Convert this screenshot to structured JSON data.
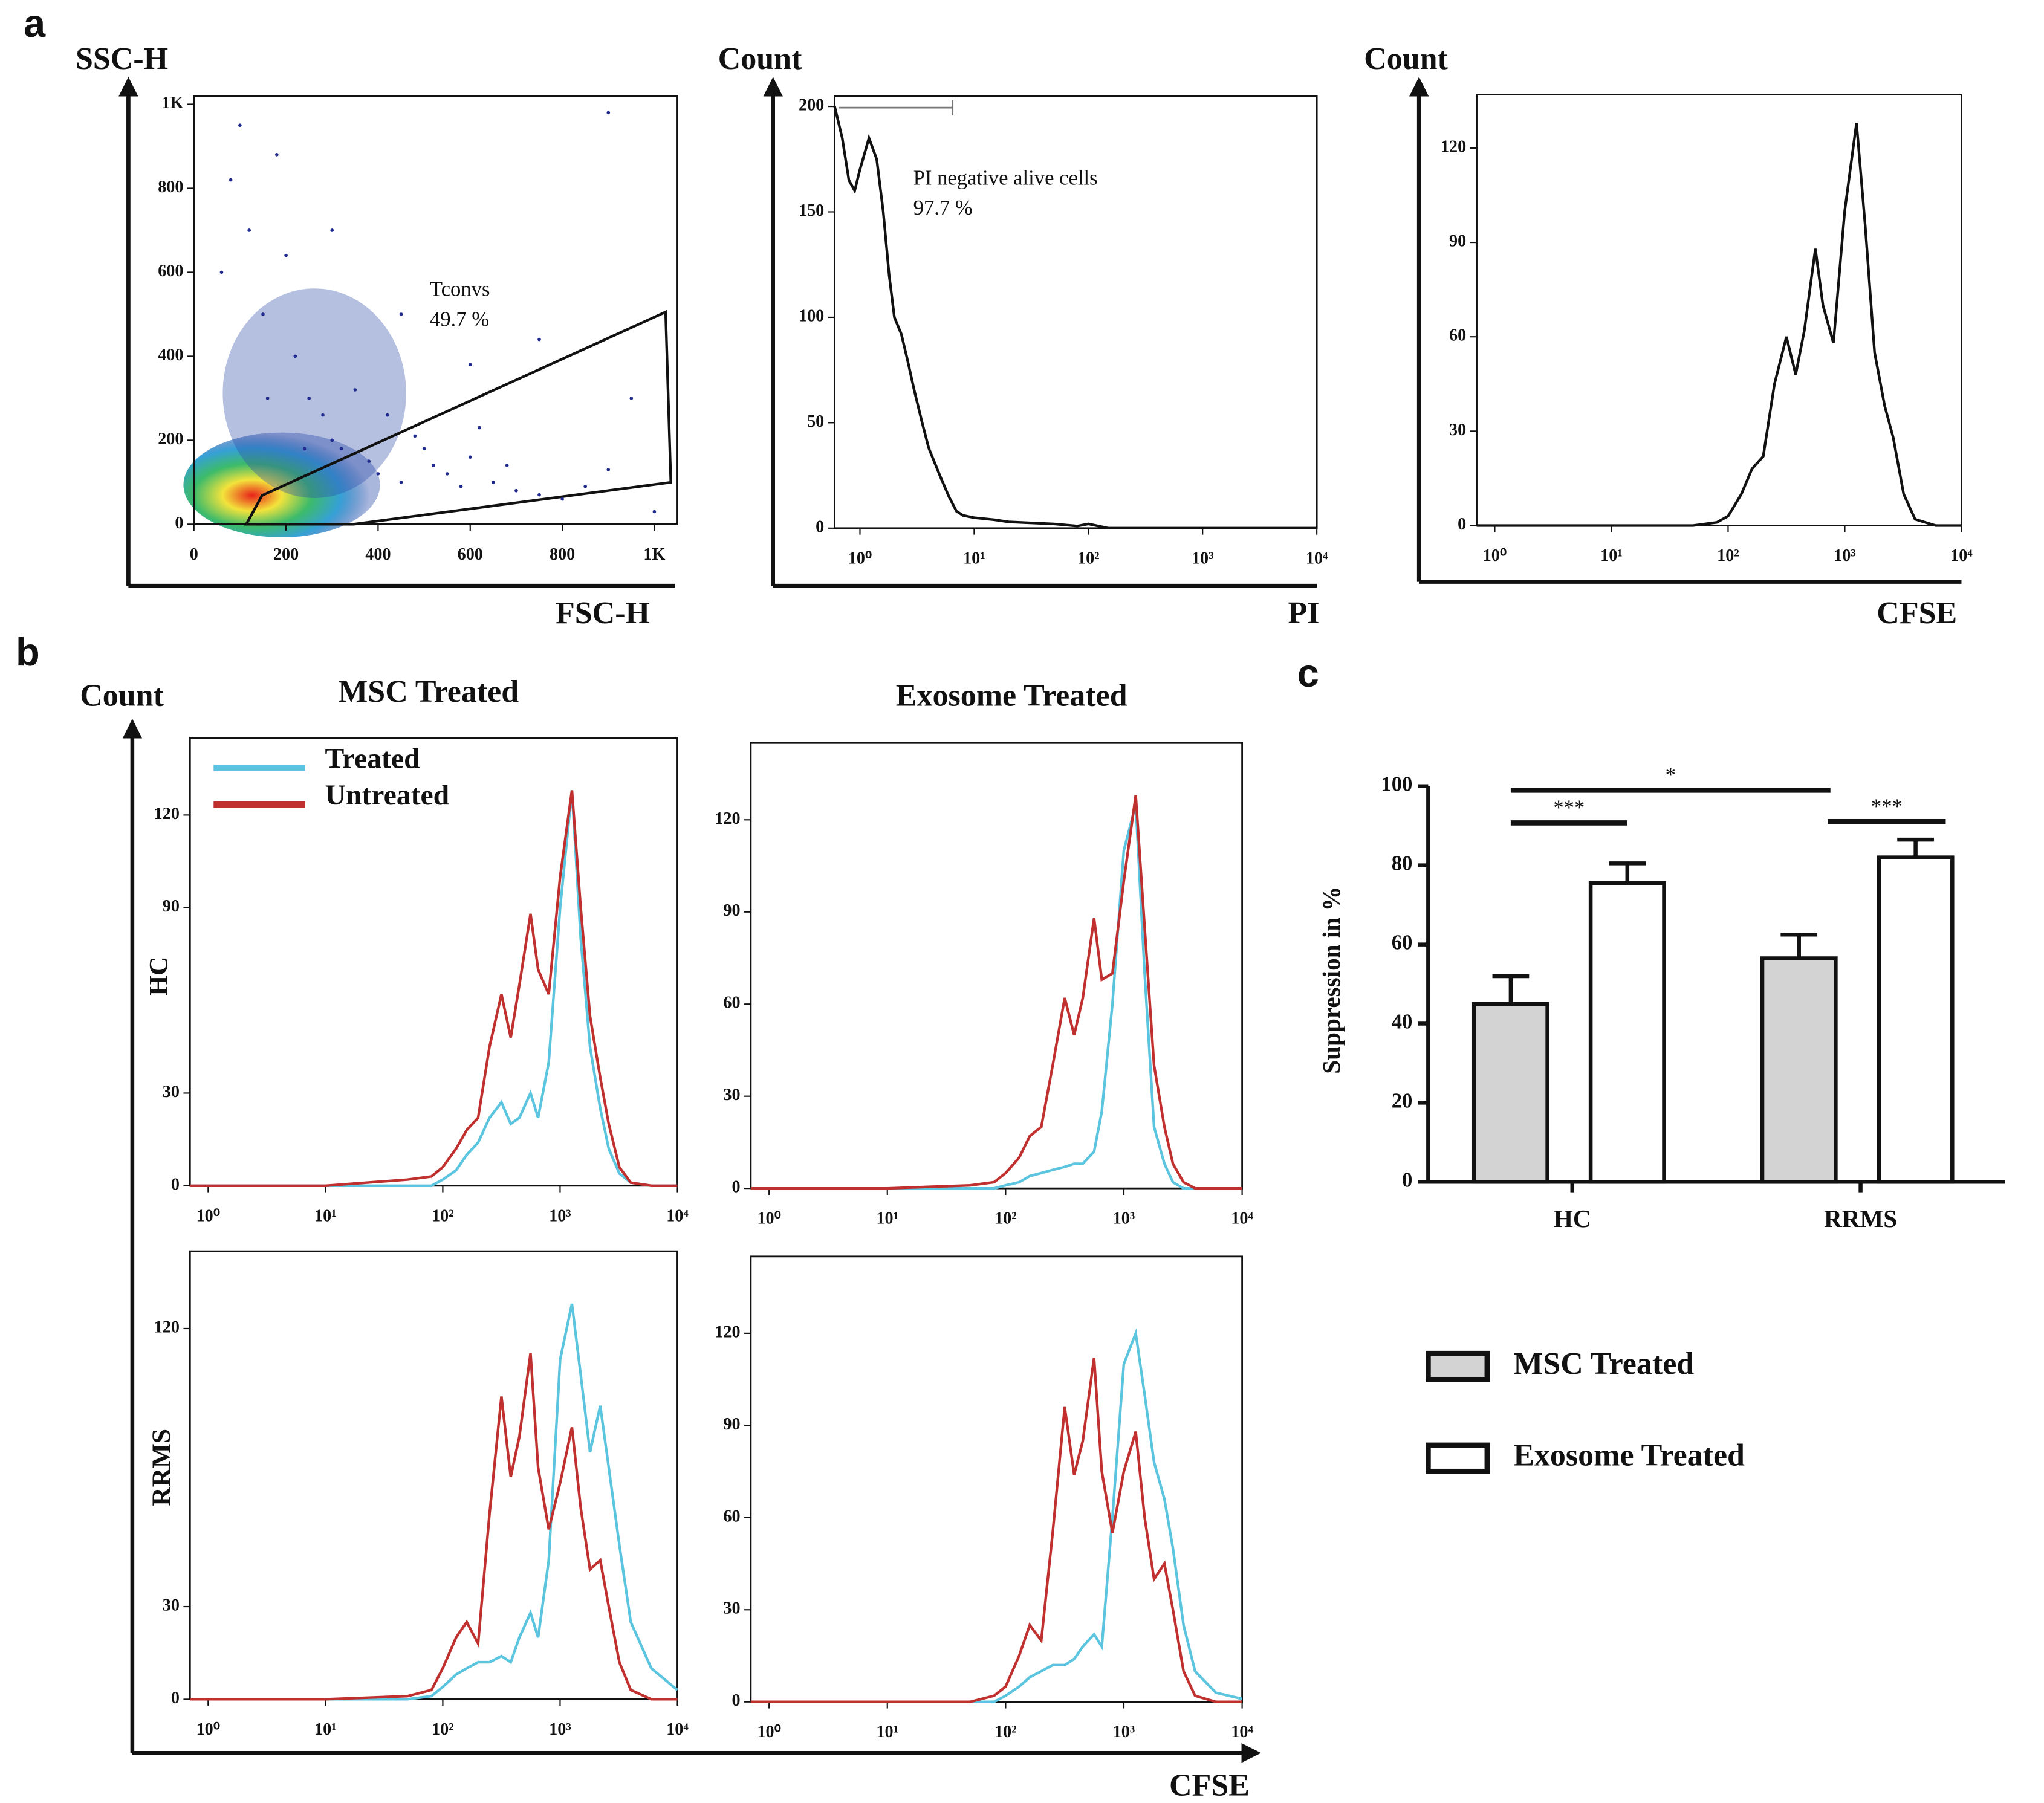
{
  "panel_labels": [
    "a",
    "b",
    "c"
  ],
  "panel_b": {
    "ylabel": "Count",
    "xlabel": "CFSE",
    "columns": [
      "MSC Treated",
      "Exosome Treated"
    ],
    "rows": [
      "HC",
      "RRMS"
    ]
  },
  "chart_data": [
    {
      "type": "scatter",
      "xlabel": "FSC-H",
      "ylabel": "SSC-H",
      "color": "#1f2a8c",
      "gate": {
        "name": "Tconvs",
        "percent": "49.7 %"
      },
      "x": [
        60,
        80,
        100,
        120,
        150,
        180,
        200,
        220,
        250,
        280,
        300,
        320,
        350,
        380,
        400,
        420,
        450,
        480,
        500,
        520,
        550,
        580,
        600,
        620,
        650,
        680,
        700,
        750,
        800,
        850,
        900,
        950,
        1000,
        160,
        240,
        300,
        450,
        600,
        750,
        900
      ],
      "y": [
        600,
        820,
        950,
        700,
        500,
        880,
        640,
        400,
        300,
        260,
        200,
        180,
        320,
        150,
        120,
        260,
        100,
        210,
        180,
        140,
        120,
        90,
        160,
        230,
        100,
        140,
        80,
        70,
        60,
        90,
        130,
        300,
        30,
        300,
        180,
        700,
        500,
        380,
        440,
        980
      ],
      "xlim": [
        0,
        1050
      ],
      "ylim": [
        0,
        1020
      ],
      "xticks": [
        0,
        200,
        400,
        600,
        800,
        {
          "value": 1000,
          "label": "1K"
        }
      ],
      "yticks": [
        0,
        200,
        400,
        600,
        800,
        {
          "value": 1000,
          "label": "1K"
        }
      ]
    },
    {
      "type": "line",
      "xlabel": "PI",
      "ylabel": "Count",
      "xscale": "log",
      "color": "#111111",
      "gate": {
        "name": "PI negative alive cells",
        "percent": "97.7 %"
      },
      "x": [
        0.6,
        0.7,
        0.8,
        0.9,
        1,
        1.2,
        1.4,
        1.6,
        1.8,
        2,
        2.3,
        2.6,
        3,
        3.5,
        4,
        5,
        6,
        7,
        8,
        10,
        15,
        20,
        50,
        80,
        100,
        150,
        1000,
        10000
      ],
      "values": [
        200,
        185,
        165,
        160,
        170,
        185,
        175,
        150,
        120,
        100,
        92,
        80,
        65,
        50,
        38,
        25,
        15,
        8,
        6,
        5,
        4,
        3,
        2,
        1,
        2,
        0,
        0,
        0
      ],
      "xlim": [
        0.6,
        10000
      ],
      "ylim": [
        0,
        205
      ],
      "xticks": [
        {
          "value": 1,
          "label": "10⁰"
        },
        {
          "value": 10,
          "label": "10¹"
        },
        {
          "value": 100,
          "label": "10²"
        },
        {
          "value": 1000,
          "label": "10³"
        },
        {
          "value": 10000,
          "label": "10⁴"
        }
      ],
      "yticks": [
        0,
        50,
        100,
        150,
        200
      ]
    },
    {
      "type": "line",
      "xlabel": "CFSE",
      "ylabel": "Count",
      "xscale": "log",
      "color": "#111111",
      "x": [
        0.7,
        10,
        50,
        80,
        100,
        130,
        160,
        200,
        250,
        316,
        380,
        450,
        560,
        650,
        800,
        1000,
        1260,
        1500,
        1800,
        2200,
        2600,
        3200,
        4000,
        6000,
        10000
      ],
      "values": [
        0,
        0,
        0,
        1,
        3,
        10,
        18,
        22,
        45,
        60,
        48,
        62,
        88,
        70,
        58,
        100,
        128,
        95,
        55,
        38,
        28,
        10,
        2,
        0,
        0
      ],
      "xlim": [
        0.7,
        10000
      ],
      "ylim": [
        0,
        137
      ],
      "xticks": [
        {
          "value": 1,
          "label": "10⁰"
        },
        {
          "value": 10,
          "label": "10¹"
        },
        {
          "value": 100,
          "label": "10²"
        },
        {
          "value": 1000,
          "label": "10³"
        },
        {
          "value": 10000,
          "label": "10⁴"
        }
      ],
      "yticks": [
        0,
        30,
        60,
        90,
        120
      ]
    },
    {
      "type": "line",
      "xscale": "log",
      "legend": "top-left",
      "x": [
        0.7,
        10,
        50,
        80,
        100,
        130,
        160,
        200,
        250,
        316,
        380,
        450,
        560,
        650,
        800,
        1000,
        1260,
        1500,
        1800,
        2200,
        2600,
        3200,
        4000,
        6000,
        10000
      ],
      "series": [
        {
          "name": "Treated",
          "color": "#5bc4de",
          "values": [
            0,
            0,
            0,
            0,
            2,
            5,
            10,
            14,
            22,
            27,
            20,
            22,
            30,
            22,
            40,
            90,
            128,
            80,
            45,
            25,
            12,
            4,
            1,
            0,
            0
          ]
        },
        {
          "name": "Untreated",
          "color": "#c0302f",
          "values": [
            0,
            0,
            2,
            3,
            6,
            12,
            18,
            22,
            45,
            62,
            48,
            65,
            88,
            70,
            62,
            100,
            128,
            90,
            55,
            35,
            20,
            6,
            1,
            0,
            0
          ]
        }
      ],
      "xlim": [
        0.7,
        10000
      ],
      "ylim": [
        0,
        145
      ],
      "xticks": [
        {
          "value": 1,
          "label": "10⁰"
        },
        {
          "value": 10,
          "label": "10¹"
        },
        {
          "value": 100,
          "label": "10²"
        },
        {
          "value": 1000,
          "label": "10³"
        },
        {
          "value": 10000,
          "label": "10⁴"
        }
      ],
      "yticks": [
        0,
        30,
        90,
        120
      ]
    },
    {
      "type": "line",
      "xscale": "log",
      "x": [
        0.7,
        10,
        50,
        80,
        100,
        130,
        160,
        200,
        250,
        316,
        380,
        450,
        560,
        650,
        800,
        1000,
        1260,
        1500,
        1800,
        2200,
        2600,
        3200,
        4000,
        6000,
        10000
      ],
      "series": [
        {
          "name": "Treated",
          "color": "#5bc4de",
          "values": [
            0,
            0,
            0,
            0,
            1,
            2,
            4,
            5,
            6,
            7,
            8,
            8,
            12,
            25,
            60,
            110,
            125,
            70,
            20,
            8,
            2,
            0,
            0,
            0,
            0
          ]
        },
        {
          "name": "Untreated",
          "color": "#c0302f",
          "values": [
            0,
            0,
            1,
            2,
            5,
            10,
            17,
            20,
            40,
            62,
            50,
            62,
            88,
            68,
            70,
            100,
            128,
            85,
            40,
            20,
            8,
            2,
            0,
            0,
            0
          ]
        }
      ],
      "xlim": [
        0.7,
        10000
      ],
      "ylim": [
        0,
        145
      ],
      "xticks": [
        {
          "value": 1,
          "label": "10⁰"
        },
        {
          "value": 10,
          "label": "10¹"
        },
        {
          "value": 100,
          "label": "10²"
        },
        {
          "value": 1000,
          "label": "10³"
        },
        {
          "value": 10000,
          "label": "10⁴"
        }
      ],
      "yticks": [
        0,
        30,
        60,
        90,
        120
      ]
    },
    {
      "type": "line",
      "xscale": "log",
      "x": [
        0.7,
        10,
        50,
        80,
        100,
        130,
        160,
        200,
        250,
        316,
        380,
        450,
        560,
        650,
        800,
        1000,
        1260,
        1500,
        1800,
        2200,
        2600,
        3200,
        4000,
        6000,
        10000
      ],
      "series": [
        {
          "name": "Treated",
          "color": "#5bc4de",
          "values": [
            0,
            0,
            0,
            1,
            4,
            8,
            10,
            12,
            12,
            14,
            12,
            20,
            28,
            20,
            45,
            110,
            128,
            105,
            80,
            95,
            75,
            50,
            25,
            10,
            3
          ]
        },
        {
          "name": "Untreated",
          "color": "#c0302f",
          "values": [
            0,
            0,
            1,
            3,
            10,
            20,
            25,
            18,
            60,
            98,
            72,
            85,
            112,
            75,
            55,
            70,
            88,
            62,
            42,
            45,
            30,
            12,
            3,
            0,
            0
          ]
        }
      ],
      "xlim": [
        0.7,
        10000
      ],
      "ylim": [
        0,
        145
      ],
      "xticks": [
        {
          "value": 1,
          "label": "10⁰"
        },
        {
          "value": 10,
          "label": "10¹"
        },
        {
          "value": 100,
          "label": "10²"
        },
        {
          "value": 1000,
          "label": "10³"
        },
        {
          "value": 10000,
          "label": "10⁴"
        }
      ],
      "yticks": [
        0,
        30,
        120
      ]
    },
    {
      "type": "line",
      "xscale": "log",
      "x": [
        0.7,
        10,
        50,
        80,
        100,
        130,
        160,
        200,
        250,
        316,
        380,
        450,
        560,
        650,
        800,
        1000,
        1260,
        1500,
        1800,
        2200,
        2600,
        3200,
        4000,
        6000,
        10000
      ],
      "series": [
        {
          "name": "Treated",
          "color": "#5bc4de",
          "values": [
            0,
            0,
            0,
            0,
            2,
            5,
            8,
            10,
            12,
            12,
            14,
            18,
            22,
            18,
            60,
            110,
            120,
            100,
            78,
            66,
            50,
            25,
            10,
            3,
            1
          ]
        },
        {
          "name": "Untreated",
          "color": "#c0302f",
          "values": [
            0,
            0,
            0,
            2,
            5,
            15,
            25,
            20,
            55,
            96,
            74,
            85,
            112,
            75,
            55,
            75,
            88,
            60,
            40,
            45,
            30,
            10,
            2,
            0,
            0
          ]
        }
      ],
      "xlim": [
        0.7,
        10000
      ],
      "ylim": [
        0,
        145
      ],
      "xticks": [
        {
          "value": 1,
          "label": "10⁰"
        },
        {
          "value": 10,
          "label": "10¹"
        },
        {
          "value": 100,
          "label": "10²"
        },
        {
          "value": 1000,
          "label": "10³"
        },
        {
          "value": 10000,
          "label": "10⁴"
        }
      ],
      "yticks": [
        0,
        30,
        60,
        90,
        120
      ]
    },
    {
      "type": "bar",
      "ylabel": "Suppression in %",
      "categories": [
        "HC",
        "RRMS"
      ],
      "legend": "bottom",
      "series": [
        {
          "name": "MSC Treated",
          "color": "#d3d3d3",
          "values": [
            45,
            56.5
          ],
          "errors": [
            7,
            6
          ]
        },
        {
          "name": "Exosome Treated",
          "color": "#ffffff",
          "values": [
            75.5,
            82
          ],
          "errors": [
            5,
            4.5
          ]
        }
      ],
      "annotations": [
        "***",
        "*",
        "***"
      ],
      "ylim": [
        0,
        100
      ],
      "yticks": [
        0,
        20,
        40,
        60,
        80,
        100
      ]
    }
  ]
}
